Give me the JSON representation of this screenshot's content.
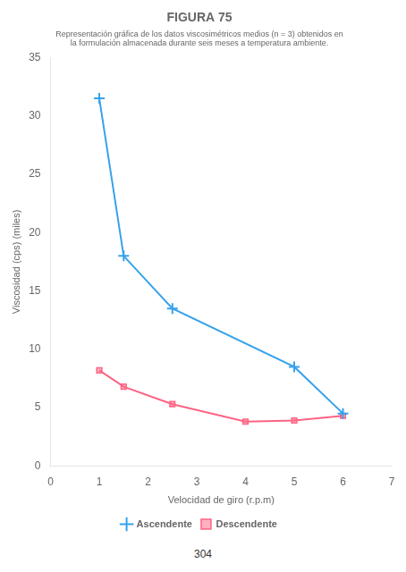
{
  "chart_data": {
    "type": "line",
    "title": "FIGURA 75",
    "subtitle": [
      "Representación gráfica de los datos viscosimétricos medios (n = 3) obtenidos en",
      "la formulación almacenada durante seis meses a temperatura ambiente."
    ],
    "x_label": "Velocidad de giro (r.p.m)",
    "y_label": "Viscosidad (cps) (miles)",
    "annotations": [
      "304"
    ],
    "series": [
      {
        "name": "Ascendente",
        "marker": "plus",
        "x": [
          1,
          1.5,
          2.5,
          5,
          6
        ],
        "values": [
          31.5,
          18.0,
          13.5,
          8.5,
          4.5
        ]
      },
      {
        "name": "Descendente",
        "marker": "square",
        "x": [
          1,
          1.5,
          2.5,
          4,
          5,
          6
        ],
        "values": [
          8.2,
          6.8,
          5.3,
          3.8,
          3.9,
          4.3
        ]
      }
    ],
    "xlim": [
      0,
      7
    ],
    "ylim": [
      0,
      35
    ],
    "xticks": [
      0,
      1,
      2,
      3,
      4,
      5,
      6,
      7
    ],
    "yticks": [
      0,
      5,
      10,
      15,
      20,
      25,
      30,
      35
    ],
    "grid": false,
    "legend": "bottom"
  }
}
